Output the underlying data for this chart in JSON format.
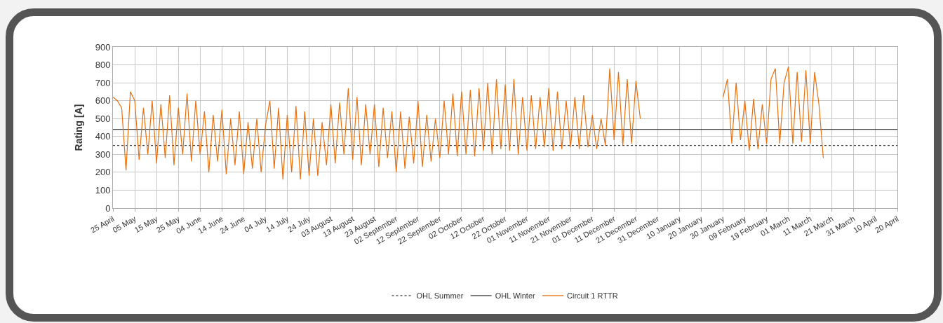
{
  "chart_data": {
    "type": "line",
    "ylabel": "Rating [A]",
    "ylim": [
      0,
      900
    ],
    "yticks": [
      0,
      100,
      200,
      300,
      400,
      500,
      600,
      700,
      800,
      900
    ],
    "categories": [
      "25 April",
      null,
      null,
      null,
      null,
      "05 May",
      null,
      null,
      null,
      null,
      "15 May",
      null,
      null,
      null,
      null,
      "25 May",
      null,
      null,
      null,
      null,
      "04 June",
      null,
      null,
      null,
      null,
      "14 June",
      null,
      null,
      null,
      null,
      "24 June",
      null,
      null,
      null,
      null,
      "04 July",
      null,
      null,
      null,
      null,
      "14 July",
      null,
      null,
      null,
      null,
      "24 July",
      null,
      null,
      null,
      null,
      "03 August",
      null,
      null,
      null,
      null,
      "13 August",
      null,
      null,
      null,
      null,
      "23 August",
      null,
      null,
      null,
      null,
      "02 September",
      null,
      null,
      null,
      null,
      "12 September",
      null,
      null,
      null,
      null,
      "22 September",
      null,
      null,
      null,
      null,
      "02 October",
      null,
      null,
      null,
      null,
      "12 October",
      null,
      null,
      null,
      null,
      "22 October",
      null,
      null,
      null,
      null,
      "01 November",
      null,
      null,
      null,
      null,
      "11 November",
      null,
      null,
      null,
      null,
      "21 November",
      null,
      null,
      null,
      null,
      "01 December",
      null,
      null,
      null,
      null,
      "11 December",
      null,
      null,
      null,
      null,
      "21 December",
      null,
      null,
      null,
      null,
      "31 December",
      null,
      null,
      null,
      null,
      "10 January",
      null,
      null,
      null,
      null,
      "20 January",
      null,
      null,
      null,
      null,
      "30 January",
      null,
      null,
      null,
      null,
      "09 February",
      null,
      null,
      null,
      null,
      "19 February",
      null,
      null,
      null,
      null,
      "01 March",
      null,
      null,
      null,
      null,
      "11 March",
      null,
      null,
      null,
      null,
      "21 March",
      null,
      null,
      null,
      null,
      "31 March",
      null,
      null,
      null,
      null,
      "10 April",
      null,
      null,
      null,
      null,
      "20 April"
    ],
    "grid": true,
    "legend": "bottom",
    "series": [
      {
        "name": "OHL Summer",
        "color": "#404040",
        "line_style": "dotted",
        "values": [
          350,
          350,
          350,
          350,
          350,
          350,
          350,
          350,
          350,
          350,
          350,
          350,
          350,
          350,
          350,
          350,
          350,
          350,
          350,
          350,
          350,
          350,
          350,
          350,
          350,
          350,
          350,
          350,
          350,
          350,
          350,
          350,
          350,
          350,
          350,
          350,
          350,
          350,
          350,
          350,
          350,
          350,
          350,
          350,
          350,
          350,
          350,
          350,
          350,
          350,
          350,
          350,
          350,
          350,
          350,
          350,
          350,
          350,
          350,
          350,
          350,
          350,
          350,
          350,
          350,
          350,
          350,
          350,
          350,
          350,
          350,
          350,
          350,
          350,
          350,
          350,
          350,
          350,
          350,
          350,
          350,
          350,
          350,
          350,
          350,
          350,
          350,
          350,
          350,
          350,
          350,
          350,
          350,
          350,
          350,
          350,
          350,
          350,
          350,
          350,
          350,
          350,
          350,
          350,
          350,
          350,
          350,
          350,
          350,
          350,
          350,
          350,
          350,
          350,
          350,
          350,
          350,
          350,
          350,
          350,
          350,
          350,
          350,
          350,
          350,
          350,
          350,
          350,
          350,
          350,
          350,
          350,
          350,
          350,
          350,
          350,
          350,
          350,
          350,
          350,
          350,
          350,
          350,
          350,
          350,
          350,
          350,
          350,
          350,
          350,
          350,
          350,
          350,
          350,
          350,
          350,
          350,
          350,
          350,
          350,
          350,
          350,
          350,
          350,
          350,
          350,
          350,
          350,
          350,
          350,
          350,
          350,
          350,
          350,
          350,
          350,
          350,
          350,
          350,
          350,
          350
        ]
      },
      {
        "name": "OHL Winter",
        "color": "#404040",
        "line_style": "solid",
        "values": [
          440,
          440,
          440,
          440,
          440,
          440,
          440,
          440,
          440,
          440,
          440,
          440,
          440,
          440,
          440,
          440,
          440,
          440,
          440,
          440,
          440,
          440,
          440,
          440,
          440,
          440,
          440,
          440,
          440,
          440,
          440,
          440,
          440,
          440,
          440,
          440,
          440,
          440,
          440,
          440,
          440,
          440,
          440,
          440,
          440,
          440,
          440,
          440,
          440,
          440,
          440,
          440,
          440,
          440,
          440,
          440,
          440,
          440,
          440,
          440,
          440,
          440,
          440,
          440,
          440,
          440,
          440,
          440,
          440,
          440,
          440,
          440,
          440,
          440,
          440,
          440,
          440,
          440,
          440,
          440,
          440,
          440,
          440,
          440,
          440,
          440,
          440,
          440,
          440,
          440,
          440,
          440,
          440,
          440,
          440,
          440,
          440,
          440,
          440,
          440,
          440,
          440,
          440,
          440,
          440,
          440,
          440,
          440,
          440,
          440,
          440,
          440,
          440,
          440,
          440,
          440,
          440,
          440,
          440,
          440,
          440,
          440,
          440,
          440,
          440,
          440,
          440,
          440,
          440,
          440,
          440,
          440,
          440,
          440,
          440,
          440,
          440,
          440,
          440,
          440,
          440,
          440,
          440,
          440,
          440,
          440,
          440,
          440,
          440,
          440,
          440,
          440,
          440,
          440,
          440,
          440,
          440,
          440,
          440,
          440,
          440,
          440,
          440,
          440,
          440,
          440,
          440,
          440,
          440,
          440,
          440,
          440,
          440,
          440,
          440,
          440,
          440,
          440,
          440,
          440,
          440
        ]
      },
      {
        "name": "Circuit 1 RTTR",
        "color": "#e8700f",
        "line_style": "solid",
        "values": [
          620,
          600,
          560,
          210,
          650,
          600,
          270,
          560,
          300,
          600,
          250,
          580,
          280,
          630,
          240,
          560,
          300,
          640,
          260,
          600,
          300,
          540,
          200,
          520,
          260,
          550,
          190,
          500,
          240,
          540,
          190,
          480,
          220,
          500,
          200,
          460,
          600,
          220,
          560,
          160,
          520,
          200,
          570,
          160,
          540,
          180,
          500,
          180,
          480,
          240,
          580,
          250,
          590,
          300,
          670,
          270,
          620,
          240,
          580,
          300,
          580,
          230,
          560,
          280,
          540,
          200,
          540,
          220,
          510,
          250,
          600,
          230,
          520,
          260,
          500,
          280,
          600,
          300,
          640,
          290,
          650,
          300,
          660,
          290,
          670,
          320,
          700,
          300,
          720,
          330,
          690,
          320,
          720,
          300,
          620,
          320,
          630,
          330,
          620,
          340,
          670,
          320,
          650,
          330,
          600,
          340,
          620,
          330,
          630,
          340,
          520,
          330,
          500,
          350,
          780,
          380,
          760,
          350,
          720,
          360,
          710,
          500,
          null,
          null,
          null,
          null,
          null,
          null,
          null,
          null,
          null,
          null,
          null,
          null,
          null,
          null,
          null,
          null,
          null,
          null,
          620,
          720,
          360,
          700,
          380,
          600,
          320,
          610,
          330,
          580,
          360,
          720,
          780,
          360,
          700,
          790,
          360,
          760,
          370,
          770,
          360,
          760,
          580,
          280,
          null,
          null,
          null,
          null,
          null,
          null,
          null,
          null,
          null,
          null,
          null,
          null,
          null,
          null,
          null,
          null,
          null
        ]
      }
    ]
  }
}
